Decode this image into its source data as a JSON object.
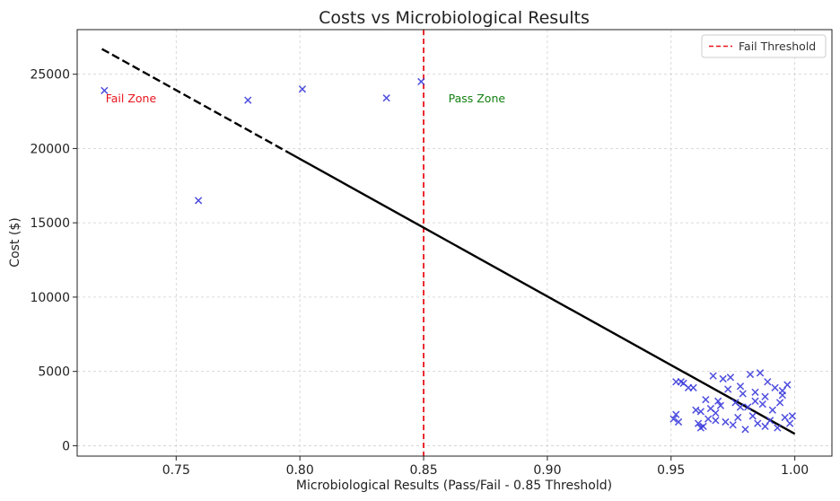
{
  "chart_data": {
    "type": "scatter",
    "title": "Costs vs Microbiological Results",
    "xlabel": "Microbiological Results (Pass/Fail - 0.85 Threshold)",
    "ylabel": "Cost ($)",
    "xlim": [
      0.71,
      1.015
    ],
    "ylim": [
      -700,
      28000
    ],
    "xticks": [
      0.75,
      0.8,
      0.85,
      0.9,
      0.95,
      1.0
    ],
    "xtick_labels": [
      "0.75",
      "0.80",
      "0.85",
      "0.90",
      "0.95",
      "1.00"
    ],
    "yticks": [
      0,
      5000,
      10000,
      15000,
      20000,
      25000
    ],
    "ytick_labels": [
      "0",
      "5000",
      "10000",
      "15000",
      "20000",
      "25000"
    ],
    "grid": true,
    "legend_position": "top-right",
    "series": [
      {
        "marker": "x",
        "color": "#3b3bdc",
        "points": [
          [
            0.721,
            23900
          ],
          [
            0.759,
            16500
          ],
          [
            0.779,
            23250
          ],
          [
            0.801,
            24000
          ],
          [
            0.835,
            23400
          ],
          [
            0.849,
            24500
          ],
          [
            0.952,
            4300
          ],
          [
            0.954,
            4300
          ],
          [
            0.955,
            4200
          ],
          [
            0.952,
            2100
          ],
          [
            0.951,
            1800
          ],
          [
            0.953,
            1600
          ],
          [
            0.957,
            3900
          ],
          [
            0.959,
            3900
          ],
          [
            0.96,
            2400
          ],
          [
            0.961,
            1500
          ],
          [
            0.962,
            1200
          ],
          [
            0.963,
            1300
          ],
          [
            0.964,
            3100
          ],
          [
            0.965,
            1800
          ],
          [
            0.966,
            2500
          ],
          [
            0.967,
            4700
          ],
          [
            0.968,
            2200
          ],
          [
            0.969,
            3000
          ],
          [
            0.97,
            2700
          ],
          [
            0.971,
            4500
          ],
          [
            0.972,
            1600
          ],
          [
            0.973,
            3800
          ],
          [
            0.974,
            4600
          ],
          [
            0.975,
            1400
          ],
          [
            0.976,
            2900
          ],
          [
            0.977,
            1900
          ],
          [
            0.978,
            4000
          ],
          [
            0.979,
            3500
          ],
          [
            0.98,
            1100
          ],
          [
            0.981,
            2600
          ],
          [
            0.982,
            4800
          ],
          [
            0.983,
            2000
          ],
          [
            0.984,
            3600
          ],
          [
            0.985,
            1500
          ],
          [
            0.986,
            4900
          ],
          [
            0.987,
            2800
          ],
          [
            0.988,
            3300
          ],
          [
            0.989,
            4300
          ],
          [
            0.99,
            1700
          ],
          [
            0.991,
            2400
          ],
          [
            0.992,
            3900
          ],
          [
            0.993,
            1200
          ],
          [
            0.994,
            2900
          ],
          [
            0.995,
            3700
          ],
          [
            0.996,
            1900
          ],
          [
            0.997,
            4100
          ],
          [
            0.998,
            1500
          ],
          [
            0.999,
            2000
          ],
          [
            0.962,
            2300
          ],
          [
            0.968,
            1700
          ],
          [
            0.978,
            2600
          ],
          [
            0.984,
            3000
          ],
          [
            0.988,
            1300
          ],
          [
            0.995,
            3400
          ]
        ]
      }
    ],
    "trend_line": {
      "x": [
        0.72,
        1.0
      ],
      "y": [
        26700,
        800
      ],
      "color": "#000000",
      "style": "dashed-then-solid"
    },
    "threshold": {
      "x": 0.85,
      "label": "Fail Threshold",
      "color": "#e8141b",
      "style": "dashed"
    },
    "annotations": [
      {
        "text": "Fail Zone",
        "x": 0.7215,
        "y": 23400,
        "color": "#e8141b"
      },
      {
        "text": "Pass Zone",
        "x": 0.86,
        "y": 23400,
        "color": "#138013"
      }
    ]
  }
}
